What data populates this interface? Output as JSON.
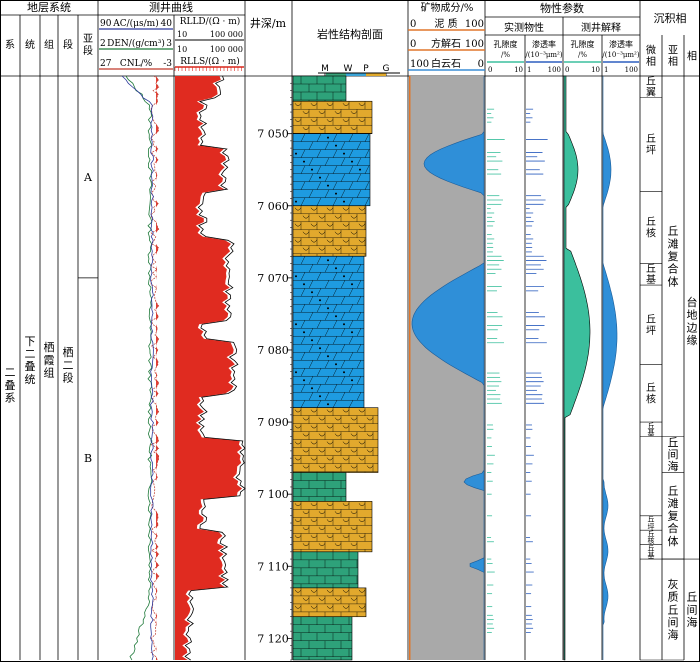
{
  "header": {
    "strat_system": "地层系统",
    "log_curves": "测井曲线",
    "well_depth": "井深/m",
    "lithology_profile": "岩性结构剖面",
    "mineral_composition": "矿物成分/%",
    "physical_params": "物性参数",
    "measured_props": "实测物性",
    "log_interp": "测井解释",
    "sed_facies": "沉积相"
  },
  "strat_cols": [
    "系",
    "统",
    "组",
    "段",
    "亚段"
  ],
  "facies_cols": [
    "微相",
    "亚相",
    "相"
  ],
  "log_track1": [
    {
      "label": "AC/(μs/m)",
      "min": "90",
      "max": "40",
      "color": "#2d3a9c"
    },
    {
      "label": "DEN/(g/cm³)",
      "min": "2",
      "max": "3",
      "color": "#1f7a3a"
    },
    {
      "label": "CNL/%",
      "min": "27",
      "max": "-3",
      "color": "#c0392b"
    }
  ],
  "log_track2": [
    {
      "label": "RLLD/(Ω · m)",
      "min": "10",
      "max": "100 000",
      "color": "#000000"
    },
    {
      "label": "RLLS/(Ω · m)",
      "min": "10",
      "max": "100 000",
      "color": "#d9261c"
    }
  ],
  "litho_legend": [
    "M",
    "W",
    "P",
    "G"
  ],
  "mineral": [
    {
      "label": "泥 质",
      "min": "0",
      "max": "100",
      "color": "#e0762b"
    },
    {
      "label": "方解石",
      "min": "0",
      "max": "100",
      "color": "#e0762b"
    },
    {
      "label": "白云石",
      "min": "100",
      "max": "0",
      "color": "#3a8ed6"
    }
  ],
  "phys": {
    "porosity": {
      "label": "孔隙度/%",
      "min": "0",
      "max": "10"
    },
    "perm": {
      "label": "渗透率/(10⁻³μm²)",
      "min": "1",
      "max": "100"
    },
    "porosity_i": {
      "label": "孔隙度/%",
      "min": "0",
      "max": "10"
    },
    "perm_i": {
      "label": "渗透率/(10⁻³μm²)",
      "min": "1",
      "max": "100"
    }
  },
  "strat": {
    "system": "二叠系",
    "series": "下二叠统",
    "formation": "栖霞组",
    "member": "栖二段",
    "submember_a": "A",
    "submember_b": "B"
  },
  "depth_ticks": [
    "7 050",
    "7 060",
    "7 070",
    "7 080",
    "7 090",
    "7 100",
    "7 110",
    "7 120"
  ],
  "depth_range": [
    7042,
    7123
  ],
  "lithology_intervals": [
    {
      "top": 7042,
      "bottom": 7045.5,
      "type": "dolo_green"
    },
    {
      "top": 7045.5,
      "bottom": 7050,
      "type": "lime_yellow"
    },
    {
      "top": 7050,
      "bottom": 7060,
      "type": "dolo_blue"
    },
    {
      "top": 7060,
      "bottom": 7067,
      "type": "lime_yellow"
    },
    {
      "top": 7067,
      "bottom": 7088,
      "type": "dolo_blue"
    },
    {
      "top": 7088,
      "bottom": 7097,
      "type": "lime_yellow"
    },
    {
      "top": 7097,
      "bottom": 7101,
      "type": "dolo_green"
    },
    {
      "top": 7101,
      "bottom": 7108,
      "type": "lime_yellow"
    },
    {
      "top": 7108,
      "bottom": 7113,
      "type": "dolo_green"
    },
    {
      "top": 7113,
      "bottom": 7117,
      "type": "lime_yellow"
    },
    {
      "top": 7117,
      "bottom": 7123,
      "type": "dolo_green"
    }
  ],
  "micro_facies": [
    {
      "label": "丘翼",
      "top": 7042,
      "bottom": 7045
    },
    {
      "label": "丘坪",
      "top": 7045,
      "bottom": 7058
    },
    {
      "label": "丘核",
      "top": 7058,
      "bottom": 7068
    },
    {
      "label": "丘基",
      "top": 7068,
      "bottom": 7071
    },
    {
      "label": "丘坪",
      "top": 7071,
      "bottom": 7082
    },
    {
      "label": "丘核",
      "top": 7082,
      "bottom": 7090
    },
    {
      "label": "丘基",
      "top": 7090,
      "bottom": 7092
    },
    {
      "label": "",
      "top": 7092,
      "bottom": 7103
    },
    {
      "label": "丘坪",
      "top": 7103,
      "bottom": 7105
    },
    {
      "label": "丘核",
      "top": 7105,
      "bottom": 7107
    },
    {
      "label": "丘基",
      "top": 7107,
      "bottom": 7109
    },
    {
      "label": "",
      "top": 7109,
      "bottom": 7123
    }
  ],
  "sub_facies": [
    {
      "label": "丘滩复合体",
      "top": 7042,
      "bottom": 7092
    },
    {
      "label": "丘间海",
      "top": 7092,
      "bottom": 7097
    },
    {
      "label": "丘滩复合体",
      "top": 7097,
      "bottom": 7109
    },
    {
      "label": "灰质丘间海",
      "top": 7109,
      "bottom": 7123
    }
  ],
  "sub_facies_right": [
    {
      "label": "",
      "top": 7042,
      "bottom": 7109
    },
    {
      "label": "丘间海",
      "top": 7109,
      "bottom": 7123
    }
  ],
  "facies": "台地边缘"
}
